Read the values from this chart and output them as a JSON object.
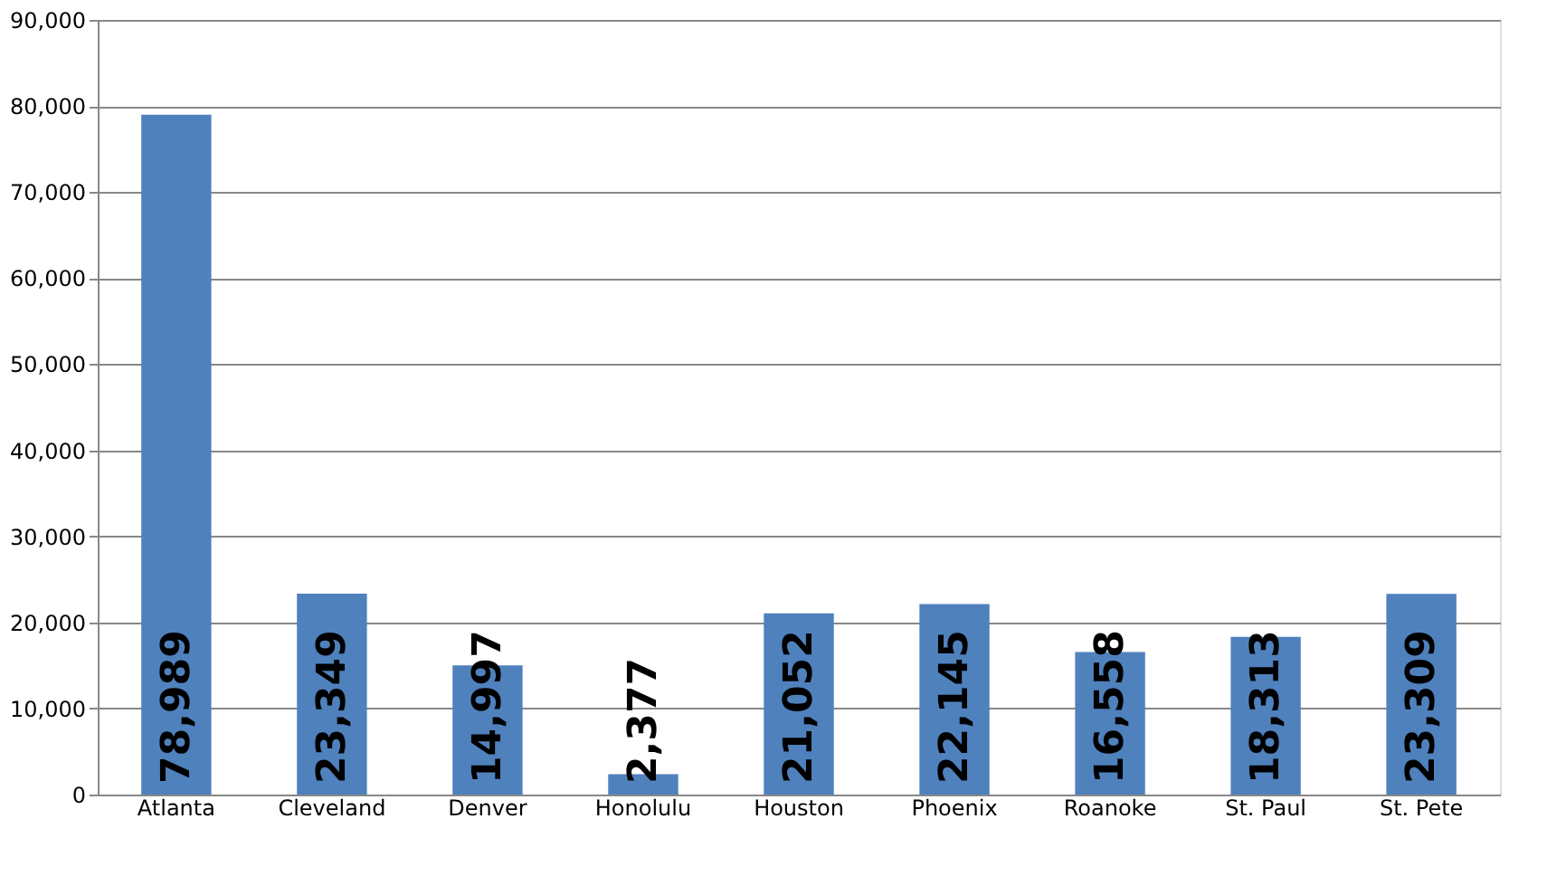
{
  "chart_data": {
    "type": "bar",
    "categories": [
      "Atlanta",
      "Cleveland",
      "Denver",
      "Honolulu",
      "Houston",
      "Phoenix",
      "Roanoke",
      "St. Paul",
      "St. Pete"
    ],
    "values": [
      78989,
      23349,
      14997,
      2377,
      21052,
      22145,
      16558,
      18313,
      23309
    ],
    "value_labels": [
      "78,989",
      "23,349",
      "14,997",
      "2,377",
      "21,052",
      "22,145",
      "16,558",
      "18,313",
      "23,309"
    ],
    "color": "#4f81bd",
    "ylim": [
      0,
      90000
    ],
    "yticks": [
      0,
      {
        "value": 10000,
        "label": "10,000"
      },
      {
        "value": 20000,
        "label": "20,000"
      },
      {
        "value": 30000,
        "label": "30,000"
      },
      {
        "value": 40000,
        "label": "40,000"
      },
      {
        "value": 50000,
        "label": "50,000"
      },
      {
        "value": 60000,
        "label": "60,000"
      },
      {
        "value": 70000,
        "label": "70,000"
      },
      {
        "value": 80000,
        "label": "80,000"
      },
      {
        "value": 90000,
        "label": "90,000"
      }
    ],
    "grid": "y"
  }
}
